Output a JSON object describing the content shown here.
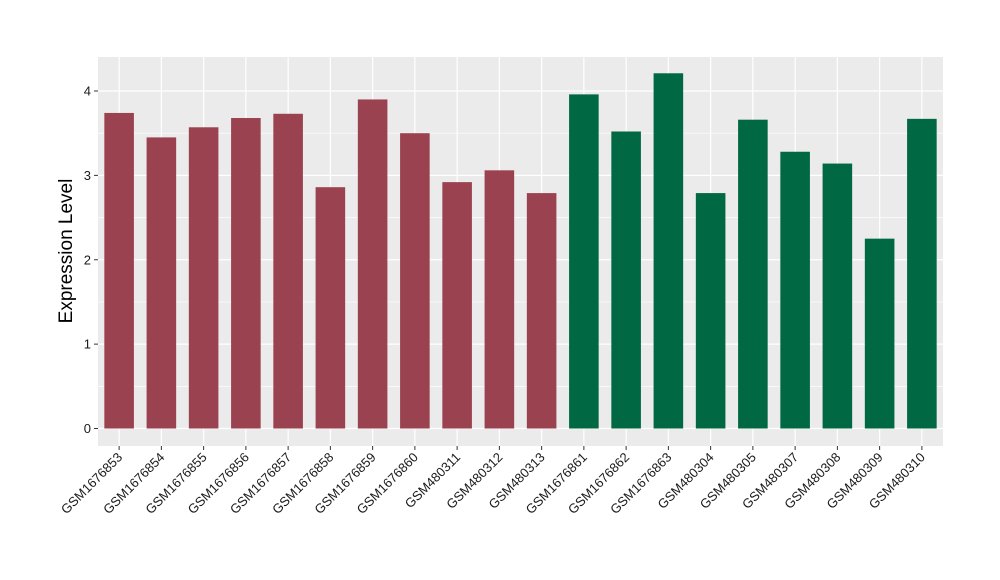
{
  "chart_data": {
    "type": "bar",
    "title": "",
    "xlabel": "",
    "ylabel": "Expression Level",
    "ylim": [
      -0.2,
      4.4
    ],
    "yticks": [
      0,
      1,
      2,
      3,
      4
    ],
    "grid": true,
    "legend": "none",
    "colors": {
      "group1": "#9b4250",
      "group2": "#006843",
      "panel": "#ebebeb",
      "grid": "#ffffff"
    },
    "categories": [
      "GSM1676853",
      "GSM1676854",
      "GSM1676855",
      "GSM1676856",
      "GSM1676857",
      "GSM1676858",
      "GSM1676859",
      "GSM1676860",
      "GSM480311",
      "GSM480312",
      "GSM480313",
      "GSM1676861",
      "GSM1676862",
      "GSM1676863",
      "GSM480304",
      "GSM480305",
      "GSM480307",
      "GSM480308",
      "GSM480309",
      "GSM480310"
    ],
    "values": [
      3.74,
      3.45,
      3.57,
      3.68,
      3.73,
      2.86,
      3.9,
      3.5,
      2.92,
      3.06,
      2.79,
      3.96,
      3.52,
      4.21,
      2.79,
      3.66,
      3.28,
      3.14,
      2.25,
      3.67
    ],
    "groups": [
      1,
      1,
      1,
      1,
      1,
      1,
      1,
      1,
      1,
      1,
      1,
      2,
      2,
      2,
      2,
      2,
      2,
      2,
      2,
      2
    ]
  }
}
